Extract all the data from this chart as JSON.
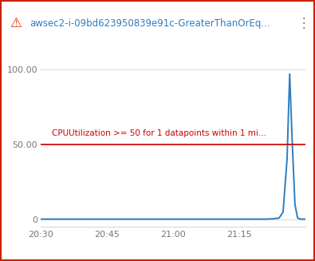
{
  "title": "awsec2-i-09bd623950839e91c-GreaterThanOrEq...",
  "title_icon": "⚠",
  "threshold_label": "CPUUtilization >= 50 for 1 datapoints within 1 mi...",
  "threshold_value": 50,
  "threshold_color": "#cc0000",
  "line_color": "#2e7dbe",
  "x_ticks": [
    "20:30",
    "20:45",
    "21:00",
    "21:15"
  ],
  "x_tick_positions": [
    0,
    5,
    10,
    15
  ],
  "x_values": [
    0,
    1,
    2,
    3,
    4,
    5,
    6,
    7,
    8,
    9,
    10,
    11,
    12,
    13,
    14,
    15,
    16,
    17,
    17.5,
    18.0,
    18.3,
    18.6,
    18.8,
    19.0,
    19.2,
    19.4,
    19.6,
    20
  ],
  "y_values": [
    0.3,
    0.3,
    0.3,
    0.3,
    0.3,
    0.3,
    0.3,
    0.3,
    0.3,
    0.3,
    0.3,
    0.3,
    0.3,
    0.3,
    0.3,
    0.3,
    0.3,
    0.3,
    0.5,
    1.0,
    5.0,
    40.0,
    97.0,
    50.0,
    10.0,
    1.0,
    0.3,
    0.3
  ],
  "ylim": [
    -5,
    115
  ],
  "xlim": [
    0,
    20
  ],
  "yticks": [
    0,
    50.0,
    100.0
  ],
  "ytick_labels": [
    "0",
    "50.00",
    "100.00"
  ],
  "background_color": "#ffffff",
  "border_color": "#cc2200",
  "border_width": 3,
  "grid_color": "#d8d8d8",
  "icon_color": "#dd3300",
  "title_color": "#2e7dbe",
  "dots_color": "#777777",
  "tick_label_color": "#777777",
  "threshold_label_fontsize": 7.5,
  "tick_fontsize": 8
}
